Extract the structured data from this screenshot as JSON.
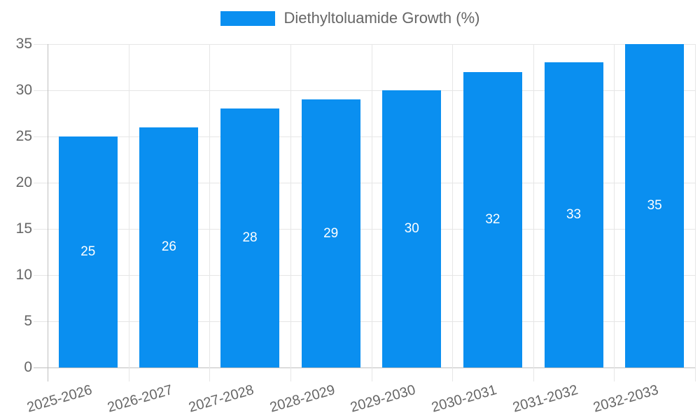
{
  "chart_data": {
    "type": "bar",
    "title": "",
    "xlabel": "",
    "ylabel": "",
    "categories": [
      "2025-2026",
      "2026-2027",
      "2027-2028",
      "2028-2029",
      "2029-2030",
      "2030-2031",
      "2031-2032",
      "2032-2033"
    ],
    "series": [
      {
        "name": "Diethyltoluamide Growth (%)",
        "values": [
          25,
          26,
          28,
          29,
          30,
          32,
          33,
          35
        ],
        "color": "#0a8ff0"
      }
    ],
    "value_labels": [
      25,
      26,
      28,
      29,
      30,
      32,
      33,
      35
    ],
    "value_label_position": "inside-center",
    "value_label_color": "#ffffff",
    "ylim": [
      0,
      35
    ],
    "yticks": [
      0,
      5,
      10,
      15,
      20,
      25,
      30,
      35
    ],
    "grid": true,
    "grid_color": "#e6e6e6",
    "axis_line_color": "#bfbfbf",
    "axis_text_color": "#666666",
    "x_label_rotation_deg": -16,
    "legend_position": "top",
    "background": "#ffffff"
  }
}
